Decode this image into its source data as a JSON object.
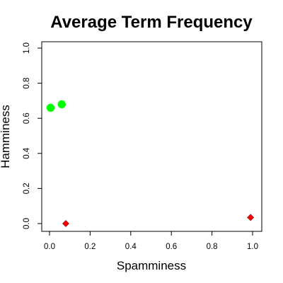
{
  "chart_data": {
    "type": "scatter",
    "title": "Average Term Frequency",
    "xlabel": "Spamminess",
    "ylabel": "Hamminess",
    "xlim": [
      0,
      1
    ],
    "ylim": [
      0,
      1
    ],
    "xticks": [
      0,
      0.2,
      0.4,
      0.6,
      0.8,
      1
    ],
    "yticks": [
      0,
      0.2,
      0.4,
      0.6,
      0.8,
      1
    ],
    "xtick_labels": [
      "0.0",
      "0.2",
      "0.4",
      "0.6",
      "0.8",
      "1.0"
    ],
    "ytick_labels": [
      "0.0",
      "0.2",
      "0.4",
      "0.6",
      "0.8",
      "1.0"
    ],
    "grid": false,
    "legend": "none",
    "series": [
      {
        "marker": "circle",
        "color": "#00ff00",
        "points": [
          {
            "x": 0.005,
            "y": 0.66
          },
          {
            "x": 0.06,
            "y": 0.68
          }
        ]
      },
      {
        "marker": "diamond",
        "color": "#ff0000",
        "points": [
          {
            "x": 0.08,
            "y": 0.0
          },
          {
            "x": 0.99,
            "y": 0.035
          }
        ]
      }
    ]
  }
}
